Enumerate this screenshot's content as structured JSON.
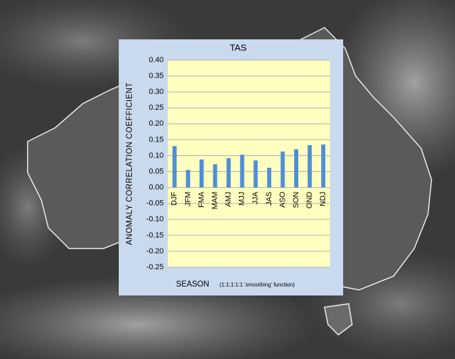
{
  "chart_data": {
    "type": "bar",
    "title": "TAS",
    "ylabel": "ANOMALY CORRELATION COEFFICIENT",
    "xlabel": "SEASON",
    "note": "(1:1:1:1:1 'smoothing' function)",
    "categories": [
      "DJF",
      "JFM",
      "FMA",
      "MAM",
      "AMJ",
      "MJJ",
      "JJA",
      "JAS",
      "ASO",
      "SON",
      "OND",
      "NDJ"
    ],
    "values": [
      0.13,
      0.055,
      0.088,
      0.073,
      0.092,
      0.103,
      0.085,
      0.062,
      0.113,
      0.12,
      0.133,
      0.135
    ],
    "color": "#4f8fd6",
    "ylim": [
      -0.25,
      0.4
    ],
    "yticks": [
      {
        "value": 0.4,
        "label": "0.40"
      },
      {
        "value": 0.35,
        "label": "0.35"
      },
      {
        "value": 0.3,
        "label": "0.30"
      },
      {
        "value": 0.25,
        "label": "0.25"
      },
      {
        "value": 0.2,
        "label": "0.20"
      },
      {
        "value": 0.15,
        "label": "0.15"
      },
      {
        "value": 0.1,
        "label": "0.10"
      },
      {
        "value": 0.05,
        "label": "0.05"
      },
      {
        "value": 0,
        "label": "0.00"
      },
      {
        "value": -0.05,
        "label": "-0.05"
      },
      {
        "value": -0.1,
        "label": "-0.10"
      },
      {
        "value": -0.15,
        "label": "-0.15"
      },
      {
        "value": -0.2,
        "label": "-0.20"
      },
      {
        "value": -0.25,
        "label": "-0.25"
      }
    ],
    "grid": true
  }
}
